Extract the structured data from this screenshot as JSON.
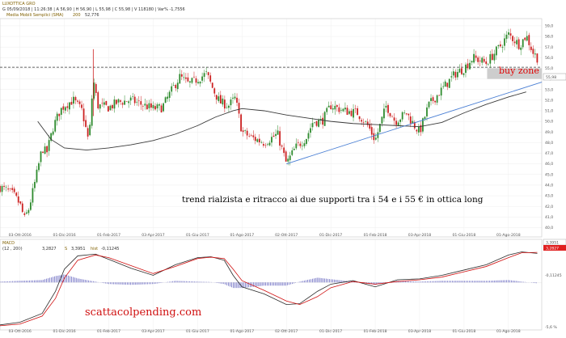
{
  "header": {
    "symbol": "LUXOTTICA GRO",
    "quote": "G 05/09/2018 | 11:26:38 | A 56,90 | H 56,90 | L 55,98 | C 55,98 | V 118180 | Var% -1,7556",
    "indicator_label": "Media Mobili Semplici (SMA)",
    "indicator_period": "200",
    "indicator_value": "52,776"
  },
  "macd_header": {
    "name": "MACD",
    "params": "(12 , 200)",
    "macd_value": "3,2827",
    "signal_label": "S",
    "signal_value": "3,3951",
    "hist_label": "hist",
    "hist_value": "-0,11245"
  },
  "annotations": {
    "main_text": "trend rialzista e ritracco ai due supporti tra i 54 e i 55 € in ottica long",
    "buy_zone": "buy zone",
    "watermark": "scattacolpending.com"
  },
  "price_badge": "55,98",
  "macd_badges": [
    "3,3951",
    "3,2827"
  ],
  "macd_hist_badge": "-0,11245",
  "colors": {
    "up": "#2e8b2e",
    "down": "#cc2222",
    "sma": "#3a3a3a",
    "trendline": "#4a7fd4",
    "macd_line": "#2a2a2a",
    "signal_line": "#d01010",
    "hist": "#3333aa",
    "buy_zone_fill": "#c8c8c8",
    "buy_text": "#e00000"
  },
  "chart_data": {
    "type": "candlestick",
    "title": "LUXOTTICA GRO",
    "y_ticks": [
      40,
      41,
      42,
      43,
      44,
      45,
      46,
      47,
      48,
      49,
      50,
      51,
      52,
      53,
      54,
      55,
      56,
      57,
      58,
      59
    ],
    "ylim": [
      39.5,
      59.3
    ],
    "x_tick_labels": [
      "03-Ott-2016",
      "01-Dic-2016",
      "01-Feb-2017",
      "03-Apr-2017",
      "01-Giu-2017",
      "01-Ago-2017",
      "02-Ott-2017",
      "01-Dic-2017",
      "01-Feb-2018",
      "03-Apr-2018",
      "01-Giu-2018",
      "01-Ago-2018"
    ],
    "x_tick_pos": [
      0.0,
      1.0,
      2.0,
      3.0,
      4.0,
      5.0,
      6.0,
      7.0,
      8.0,
      9.0,
      10.0,
      11.0
    ],
    "xlim": [
      -0.45,
      11.75
    ],
    "price_close_path": [
      [
        -0.45,
        43.8
      ],
      [
        -0.3,
        43.5
      ],
      [
        -0.15,
        43.1
      ],
      [
        0.0,
        42.2
      ],
      [
        0.1,
        40.8
      ],
      [
        0.2,
        41.8
      ],
      [
        0.35,
        44.5
      ],
      [
        0.5,
        47.5
      ],
      [
        0.6,
        47.0
      ],
      [
        0.75,
        49.5
      ],
      [
        0.9,
        51.0
      ],
      [
        1.0,
        51.5
      ],
      [
        1.2,
        52.0
      ],
      [
        1.4,
        51.0
      ],
      [
        1.55,
        48.0
      ],
      [
        1.65,
        54.0
      ],
      [
        1.75,
        51.5
      ],
      [
        2.0,
        51.3
      ],
      [
        2.2,
        51.8
      ],
      [
        2.5,
        52.0
      ],
      [
        2.8,
        51.5
      ],
      [
        3.0,
        51.2
      ],
      [
        3.2,
        51.3
      ],
      [
        3.4,
        52.8
      ],
      [
        3.6,
        54.2
      ],
      [
        3.8,
        53.5
      ],
      [
        4.0,
        54.0
      ],
      [
        4.2,
        54.5
      ],
      [
        4.35,
        53.0
      ],
      [
        4.5,
        51.8
      ],
      [
        4.7,
        51.5
      ],
      [
        4.85,
        52.2
      ],
      [
        5.0,
        49.0
      ],
      [
        5.2,
        48.5
      ],
      [
        5.5,
        48.0
      ],
      [
        5.8,
        48.8
      ],
      [
        6.0,
        46.0
      ],
      [
        6.2,
        47.5
      ],
      [
        6.45,
        48.5
      ],
      [
        6.6,
        50.0
      ],
      [
        6.8,
        50.0
      ],
      [
        7.0,
        51.5
      ],
      [
        7.3,
        51.0
      ],
      [
        7.6,
        50.8
      ],
      [
        7.85,
        49.5
      ],
      [
        8.0,
        48.2
      ],
      [
        8.25,
        51.5
      ],
      [
        8.45,
        50.0
      ],
      [
        8.7,
        50.8
      ],
      [
        8.9,
        49.5
      ],
      [
        9.0,
        49.0
      ],
      [
        9.2,
        51.5
      ],
      [
        9.5,
        53.0
      ],
      [
        9.8,
        54.5
      ],
      [
        10.0,
        55.0
      ],
      [
        10.2,
        56.0
      ],
      [
        10.5,
        55.5
      ],
      [
        10.8,
        57.0
      ],
      [
        11.0,
        58.2
      ],
      [
        11.25,
        57.2
      ],
      [
        11.4,
        58.1
      ],
      [
        11.55,
        56.5
      ],
      [
        11.65,
        55.98
      ]
    ],
    "sma200": [
      [
        0.4,
        50.0
      ],
      [
        0.7,
        48.3
      ],
      [
        1.0,
        47.5
      ],
      [
        1.5,
        47.3
      ],
      [
        2.0,
        47.5
      ],
      [
        2.5,
        47.8
      ],
      [
        3.0,
        48.2
      ],
      [
        3.5,
        48.8
      ],
      [
        4.0,
        49.6
      ],
      [
        4.4,
        50.4
      ],
      [
        4.8,
        51.0
      ],
      [
        5.0,
        51.2
      ],
      [
        5.5,
        51.0
      ],
      [
        6.0,
        50.6
      ],
      [
        6.5,
        50.3
      ],
      [
        7.0,
        50.0
      ],
      [
        7.5,
        49.8
      ],
      [
        8.0,
        49.7
      ],
      [
        8.5,
        49.6
      ],
      [
        9.0,
        49.5
      ],
      [
        9.5,
        49.9
      ],
      [
        10.0,
        50.8
      ],
      [
        10.5,
        51.6
      ],
      [
        11.0,
        52.3
      ],
      [
        11.4,
        52.776
      ]
    ],
    "dashed_level": 55.1,
    "buy_zone": [
      54.0,
      55.0
    ],
    "trendline": [
      [
        6.0,
        46.0
      ],
      [
        11.75,
        53.7
      ]
    ],
    "macd": {
      "ylim": [
        -5.0,
        4.5
      ],
      "right_axis_label": "-5,6 %",
      "macd_line": [
        [
          -0.45,
          -4.8
        ],
        [
          0.0,
          -4.5
        ],
        [
          0.5,
          -3.5
        ],
        [
          0.8,
          -1.0
        ],
        [
          1.0,
          1.5
        ],
        [
          1.3,
          3.0
        ],
        [
          1.7,
          3.2
        ],
        [
          2.0,
          2.6
        ],
        [
          2.5,
          1.6
        ],
        [
          3.0,
          0.8
        ],
        [
          3.5,
          2.0
        ],
        [
          4.0,
          2.8
        ],
        [
          4.3,
          2.9
        ],
        [
          4.6,
          2.5
        ],
        [
          4.8,
          0.8
        ],
        [
          5.0,
          -0.5
        ],
        [
          5.5,
          -1.3
        ],
        [
          6.0,
          -2.5
        ],
        [
          6.3,
          -2.4
        ],
        [
          6.7,
          -1.0
        ],
        [
          7.0,
          -0.2
        ],
        [
          7.5,
          0.2
        ],
        [
          8.0,
          -0.5
        ],
        [
          8.5,
          0.3
        ],
        [
          9.0,
          0.4
        ],
        [
          9.5,
          0.8
        ],
        [
          10.0,
          1.4
        ],
        [
          10.5,
          2.0
        ],
        [
          11.0,
          3.1
        ],
        [
          11.3,
          3.45
        ],
        [
          11.65,
          3.28
        ]
      ],
      "signal_line": [
        [
          -0.45,
          -4.9
        ],
        [
          0.0,
          -4.7
        ],
        [
          0.5,
          -3.8
        ],
        [
          0.8,
          -1.8
        ],
        [
          1.0,
          0.5
        ],
        [
          1.3,
          2.5
        ],
        [
          1.7,
          3.1
        ],
        [
          2.0,
          2.8
        ],
        [
          2.5,
          1.9
        ],
        [
          3.0,
          1.0
        ],
        [
          3.5,
          1.8
        ],
        [
          4.0,
          2.7
        ],
        [
          4.3,
          2.85
        ],
        [
          4.6,
          2.7
        ],
        [
          4.8,
          1.5
        ],
        [
          5.0,
          0.2
        ],
        [
          5.5,
          -0.9
        ],
        [
          6.0,
          -2.1
        ],
        [
          6.3,
          -2.5
        ],
        [
          6.7,
          -1.6
        ],
        [
          7.0,
          -0.6
        ],
        [
          7.5,
          0.1
        ],
        [
          8.0,
          -0.2
        ],
        [
          8.5,
          0.1
        ],
        [
          9.0,
          0.3
        ],
        [
          9.5,
          0.6
        ],
        [
          10.0,
          1.2
        ],
        [
          10.5,
          1.8
        ],
        [
          11.0,
          2.8
        ],
        [
          11.3,
          3.35
        ],
        [
          11.65,
          3.3951
        ]
      ]
    }
  }
}
